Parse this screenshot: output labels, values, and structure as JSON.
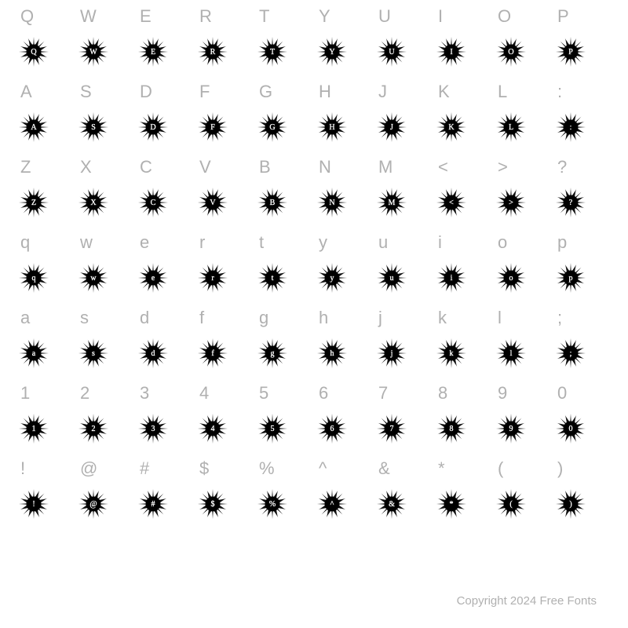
{
  "background_color": "#ffffff",
  "label_color": "#b0b0b0",
  "label_fontsize": 22,
  "glyph_burst_color": "#000000",
  "glyph_char_color": "#ffffff",
  "glyph_char_fontsize": 10,
  "grid_columns": 10,
  "rows": [
    {
      "labels": [
        "Q",
        "W",
        "E",
        "R",
        "T",
        "Y",
        "U",
        "I",
        "O",
        "P"
      ],
      "glyphs": [
        "Q",
        "W",
        "E",
        "R",
        "T",
        "Y",
        "U",
        "I",
        "O",
        "P"
      ]
    },
    {
      "labels": [
        "A",
        "S",
        "D",
        "F",
        "G",
        "H",
        "J",
        "K",
        "L",
        ":"
      ],
      "glyphs": [
        "A",
        "S",
        "D",
        "F",
        "G",
        "H",
        "J",
        "K",
        "L",
        ":"
      ]
    },
    {
      "labels": [
        "Z",
        "X",
        "C",
        "V",
        "B",
        "N",
        "M",
        "<",
        ">",
        "?"
      ],
      "glyphs": [
        "Z",
        "X",
        "C",
        "V",
        "B",
        "N",
        "M",
        "<",
        ">",
        "?"
      ]
    },
    {
      "labels": [
        "q",
        "w",
        "e",
        "r",
        "t",
        "y",
        "u",
        "i",
        "o",
        "p"
      ],
      "glyphs": [
        "q",
        "w",
        "e",
        "r",
        "t",
        "y",
        "u",
        "i",
        "o",
        "p"
      ]
    },
    {
      "labels": [
        "a",
        "s",
        "d",
        "f",
        "g",
        "h",
        "j",
        "k",
        "l",
        ";"
      ],
      "glyphs": [
        "a",
        "s",
        "d",
        "f",
        "g",
        "h",
        "j",
        "k",
        "l",
        ";"
      ]
    },
    {
      "labels": [
        "1",
        "2",
        "3",
        "4",
        "5",
        "6",
        "7",
        "8",
        "9",
        "0"
      ],
      "glyphs": [
        "1",
        "2",
        "3",
        "4",
        "5",
        "6",
        "7",
        "8",
        "9",
        "0"
      ]
    },
    {
      "labels": [
        "!",
        "@",
        "#",
        "$",
        "%",
        "^",
        "&",
        "*",
        "(",
        ")"
      ],
      "glyphs": [
        "!",
        "@",
        "#",
        "$",
        "%",
        "^",
        "&",
        "*",
        "(",
        ")"
      ]
    }
  ],
  "copyright": "Copyright 2024 Free Fonts"
}
